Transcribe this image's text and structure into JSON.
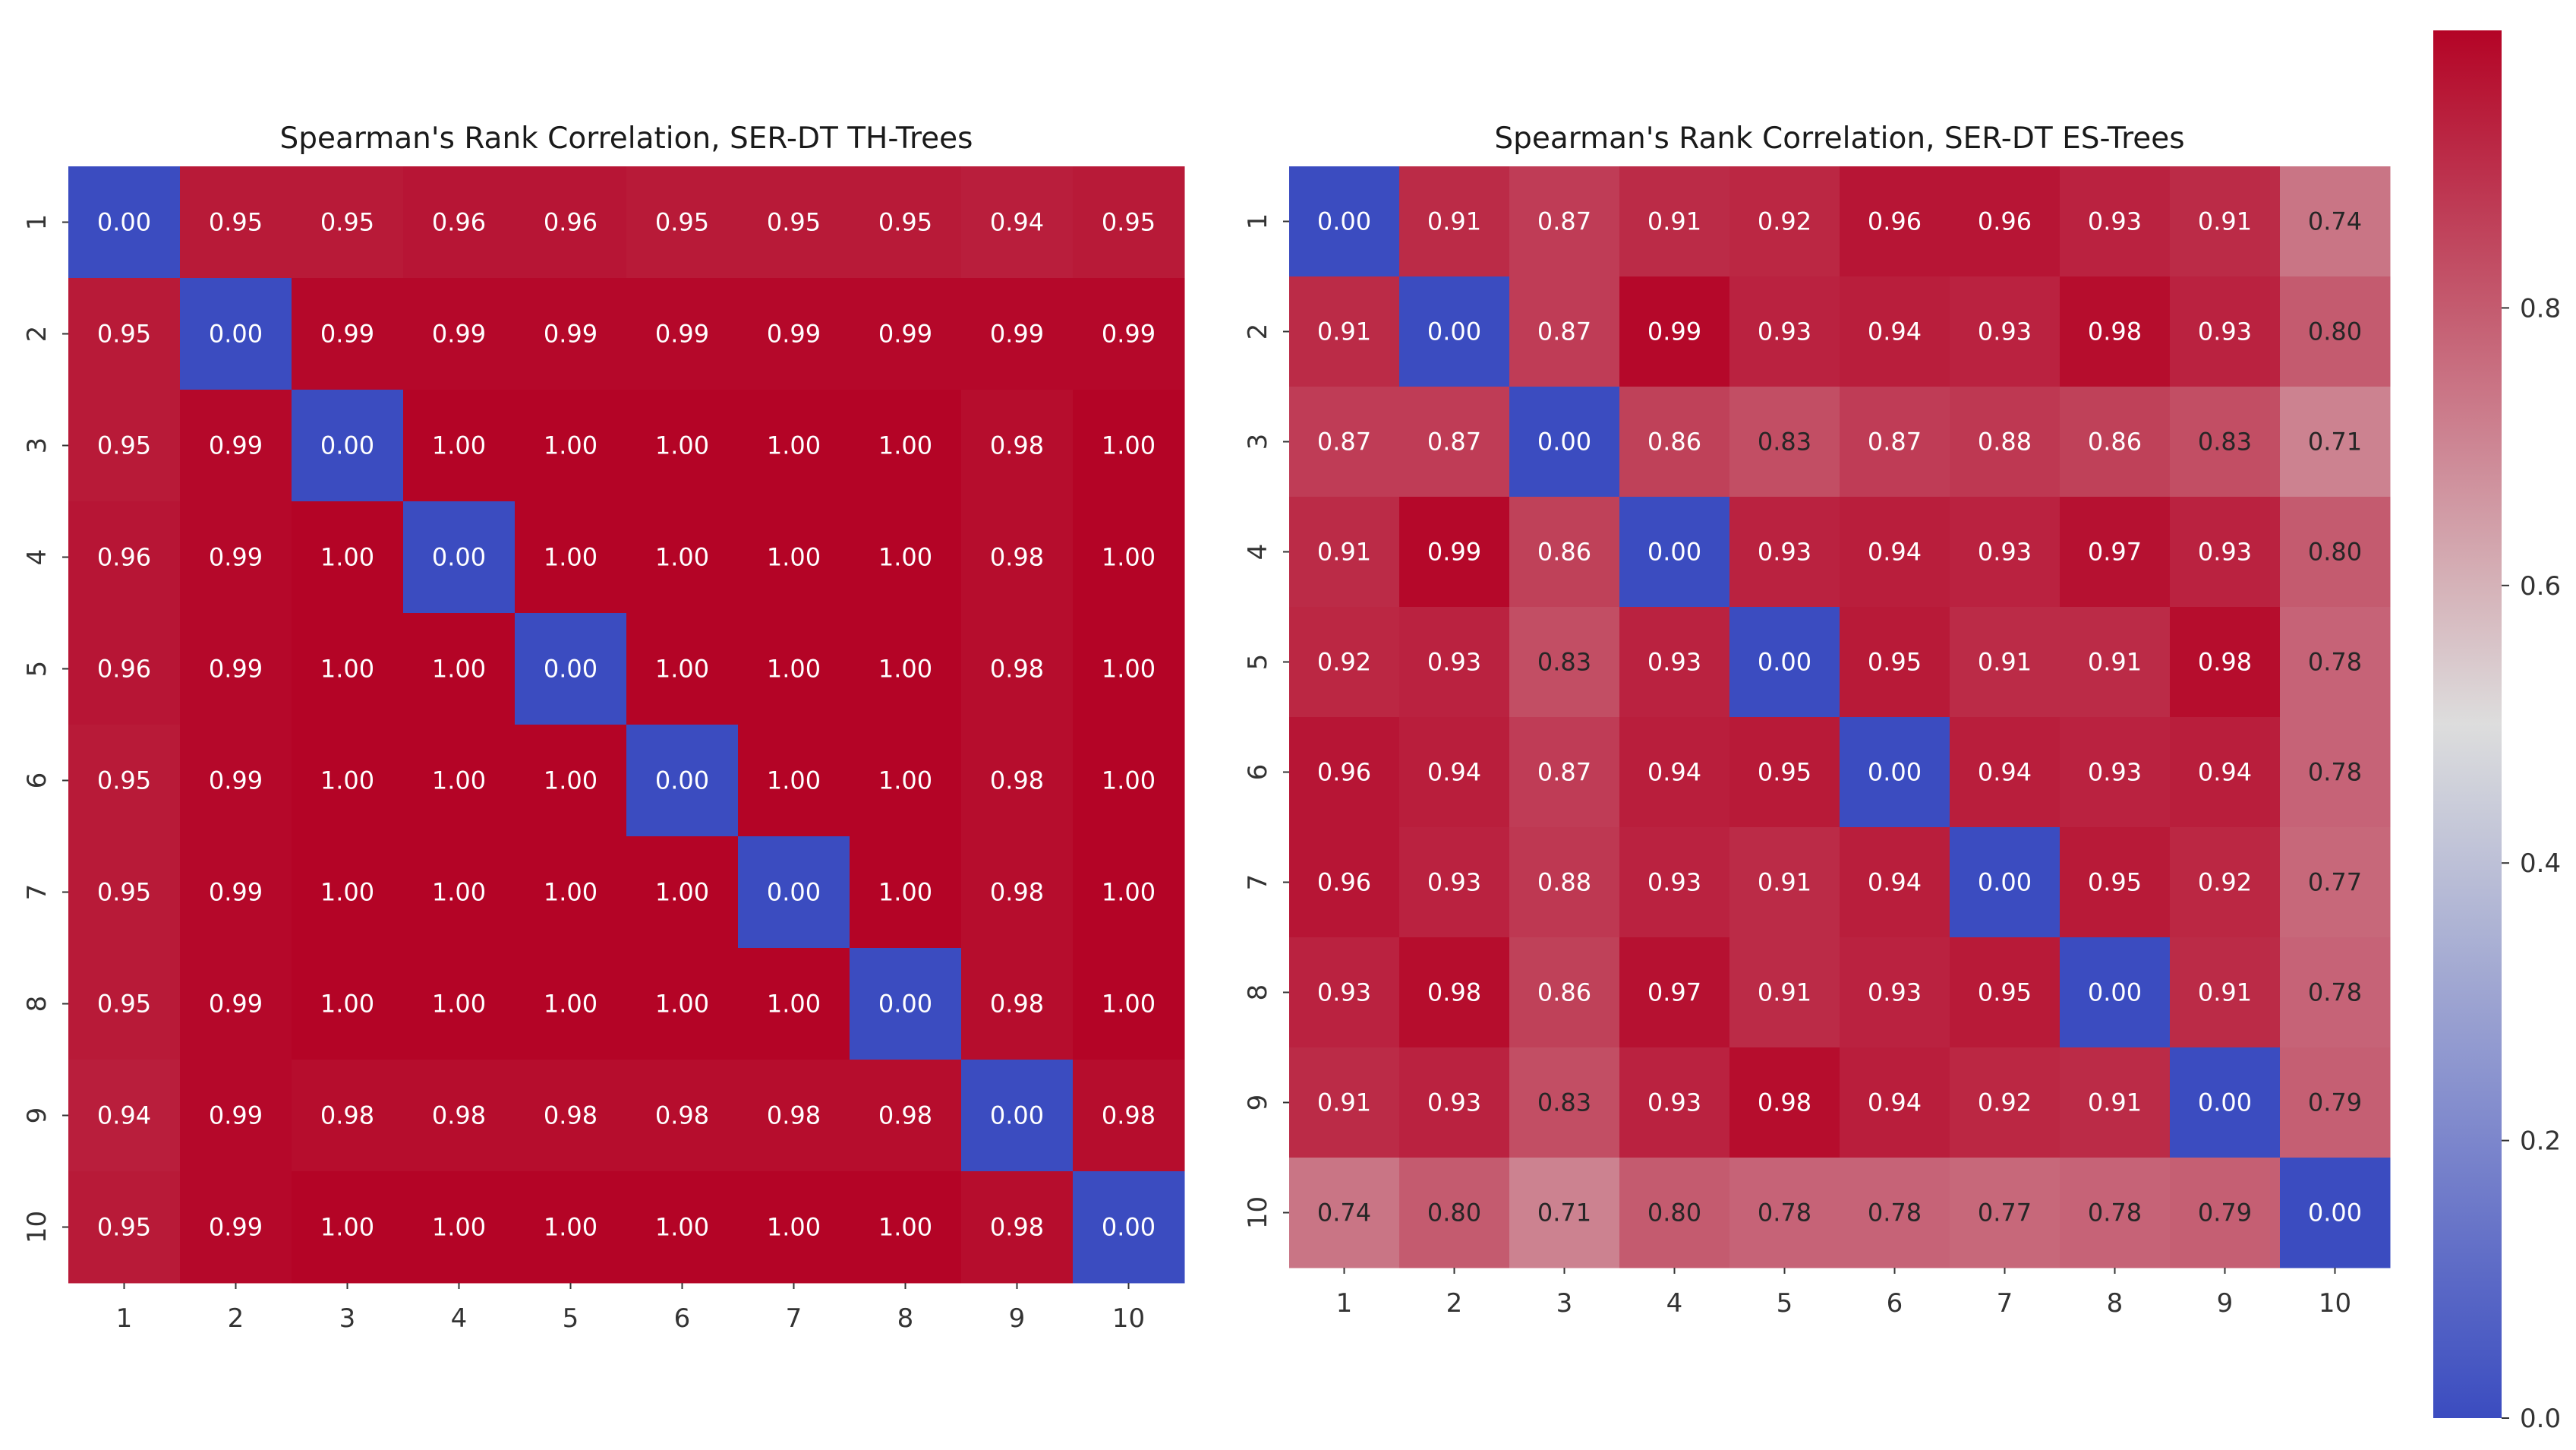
{
  "colors": {
    "cmap_low": "#3b4cc0",
    "cmap_mid": "#dddddd",
    "cmap_high": "#b40426",
    "tick": "#333333",
    "text_dark": "#262626",
    "text_light": "#ffffff"
  },
  "chart_data": [
    {
      "type": "heatmap",
      "title": "Spearman's Rank Correlation, SER-DT TH-Trees",
      "xlabels": [
        "1",
        "2",
        "3",
        "4",
        "5",
        "6",
        "7",
        "8",
        "9",
        "10"
      ],
      "ylabels": [
        "1",
        "2",
        "3",
        "4",
        "5",
        "6",
        "7",
        "8",
        "9",
        "10"
      ],
      "values": [
        [
          0.0,
          0.95,
          0.95,
          0.96,
          0.96,
          0.95,
          0.95,
          0.95,
          0.94,
          0.95
        ],
        [
          0.95,
          0.0,
          0.99,
          0.99,
          0.99,
          0.99,
          0.99,
          0.99,
          0.99,
          0.99
        ],
        [
          0.95,
          0.99,
          0.0,
          1.0,
          1.0,
          1.0,
          1.0,
          1.0,
          0.98,
          1.0
        ],
        [
          0.96,
          0.99,
          1.0,
          0.0,
          1.0,
          1.0,
          1.0,
          1.0,
          0.98,
          1.0
        ],
        [
          0.96,
          0.99,
          1.0,
          1.0,
          0.0,
          1.0,
          1.0,
          1.0,
          0.98,
          1.0
        ],
        [
          0.95,
          0.99,
          1.0,
          1.0,
          1.0,
          0.0,
          1.0,
          1.0,
          0.98,
          1.0
        ],
        [
          0.95,
          0.99,
          1.0,
          1.0,
          1.0,
          1.0,
          0.0,
          1.0,
          0.98,
          1.0
        ],
        [
          0.95,
          0.99,
          1.0,
          1.0,
          1.0,
          1.0,
          1.0,
          0.0,
          0.98,
          1.0
        ],
        [
          0.94,
          0.99,
          0.98,
          0.98,
          0.98,
          0.98,
          0.98,
          0.98,
          0.0,
          0.98
        ],
        [
          0.95,
          0.99,
          1.0,
          1.0,
          1.0,
          1.0,
          1.0,
          1.0,
          0.98,
          0.0
        ]
      ],
      "labels": [
        [
          "0.00",
          "0.95",
          "0.95",
          "0.96",
          "0.96",
          "0.95",
          "0.95",
          "0.95",
          "0.94",
          "0.95"
        ],
        [
          "0.95",
          "0.00",
          "0.99",
          "0.99",
          "0.99",
          "0.99",
          "0.99",
          "0.99",
          "0.99",
          "0.99"
        ],
        [
          "0.95",
          "0.99",
          "0.00",
          "1.00",
          "1.00",
          "1.00",
          "1.00",
          "1.00",
          "0.98",
          "1.00"
        ],
        [
          "0.96",
          "0.99",
          "1.00",
          "0.00",
          "1.00",
          "1.00",
          "1.00",
          "1.00",
          "0.98",
          "1.00"
        ],
        [
          "0.96",
          "0.99",
          "1.00",
          "1.00",
          "0.00",
          "1.00",
          "1.00",
          "1.00",
          "0.98",
          "1.00"
        ],
        [
          "0.95",
          "0.99",
          "1.00",
          "1.00",
          "1.00",
          "0.00",
          "1.00",
          "1.00",
          "0.98",
          "1.00"
        ],
        [
          "0.95",
          "0.99",
          "1.00",
          "1.00",
          "1.00",
          "1.00",
          "0.00",
          "1.00",
          "0.98",
          "1.00"
        ],
        [
          "0.95",
          "0.99",
          "1.00",
          "1.00",
          "1.00",
          "1.00",
          "1.00",
          "0.00",
          "0.98",
          "1.00"
        ],
        [
          "0.94",
          "0.99",
          "0.98",
          "0.98",
          "0.98",
          "0.98",
          "0.98",
          "0.98",
          "0.00",
          "0.98"
        ],
        [
          "0.95",
          "0.99",
          "1.00",
          "1.00",
          "1.00",
          "1.00",
          "1.00",
          "1.00",
          "0.98",
          "0.00"
        ]
      ]
    },
    {
      "type": "heatmap",
      "title": "Spearman's Rank Correlation, SER-DT ES-Trees",
      "xlabels": [
        "1",
        "2",
        "3",
        "4",
        "5",
        "6",
        "7",
        "8",
        "9",
        "10"
      ],
      "ylabels": [
        "1",
        "2",
        "3",
        "4",
        "5",
        "6",
        "7",
        "8",
        "9",
        "10"
      ],
      "values": [
        [
          0.0,
          0.91,
          0.87,
          0.91,
          0.92,
          0.96,
          0.96,
          0.93,
          0.91,
          0.74
        ],
        [
          0.91,
          0.0,
          0.87,
          0.99,
          0.93,
          0.94,
          0.93,
          0.98,
          0.93,
          0.8
        ],
        [
          0.87,
          0.87,
          0.0,
          0.86,
          0.83,
          0.87,
          0.88,
          0.86,
          0.83,
          0.71
        ],
        [
          0.91,
          0.99,
          0.86,
          0.0,
          0.93,
          0.94,
          0.93,
          0.97,
          0.93,
          0.8
        ],
        [
          0.92,
          0.93,
          0.83,
          0.93,
          0.0,
          0.95,
          0.91,
          0.91,
          0.98,
          0.78
        ],
        [
          0.96,
          0.94,
          0.87,
          0.94,
          0.95,
          0.0,
          0.94,
          0.93,
          0.94,
          0.78
        ],
        [
          0.96,
          0.93,
          0.88,
          0.93,
          0.91,
          0.94,
          0.0,
          0.95,
          0.92,
          0.77
        ],
        [
          0.93,
          0.98,
          0.86,
          0.97,
          0.91,
          0.93,
          0.95,
          0.0,
          0.91,
          0.78
        ],
        [
          0.91,
          0.93,
          0.83,
          0.93,
          0.98,
          0.94,
          0.92,
          0.91,
          0.0,
          0.79
        ],
        [
          0.74,
          0.8,
          0.71,
          0.8,
          0.78,
          0.78,
          0.77,
          0.78,
          0.79,
          0.0
        ]
      ],
      "labels": [
        [
          "0.00",
          "0.91",
          "0.87",
          "0.91",
          "0.92",
          "0.96",
          "0.96",
          "0.93",
          "0.91",
          "0.74"
        ],
        [
          "0.91",
          "0.00",
          "0.87",
          "0.99",
          "0.93",
          "0.94",
          "0.93",
          "0.98",
          "0.93",
          "0.80"
        ],
        [
          "0.87",
          "0.87",
          "0.00",
          "0.86",
          "0.83",
          "0.87",
          "0.88",
          "0.86",
          "0.83",
          "0.71"
        ],
        [
          "0.91",
          "0.99",
          "0.86",
          "0.00",
          "0.93",
          "0.94",
          "0.93",
          "0.97",
          "0.93",
          "0.80"
        ],
        [
          "0.92",
          "0.93",
          "0.83",
          "0.93",
          "0.00",
          "0.95",
          "0.91",
          "0.91",
          "0.98",
          "0.78"
        ],
        [
          "0.96",
          "0.94",
          "0.87",
          "0.94",
          "0.95",
          "0.00",
          "0.94",
          "0.93",
          "0.94",
          "0.78"
        ],
        [
          "0.96",
          "0.93",
          "0.88",
          "0.93",
          "0.91",
          "0.94",
          "0.00",
          "0.95",
          "0.92",
          "0.77"
        ],
        [
          "0.93",
          "0.98",
          "0.86",
          "0.97",
          "0.91",
          "0.93",
          "0.95",
          "0.00",
          "0.91",
          "0.78"
        ],
        [
          "0.91",
          "0.93",
          "0.83",
          "0.93",
          "0.98",
          "0.94",
          "0.92",
          "0.91",
          "0.00",
          "0.79"
        ],
        [
          "0.74",
          "0.80",
          "0.71",
          "0.80",
          "0.78",
          "0.78",
          "0.77",
          "0.78",
          "0.79",
          "0.00"
        ]
      ]
    }
  ],
  "colorbar": {
    "colormap": "coolwarm",
    "range": [
      0.0,
      1.0
    ],
    "ticks": [
      {
        "value": 0.0,
        "label": "0.0"
      },
      {
        "value": 0.2,
        "label": "0.2"
      },
      {
        "value": 0.4,
        "label": "0.4"
      },
      {
        "value": 0.6,
        "label": "0.6"
      },
      {
        "value": 0.8,
        "label": "0.8"
      }
    ]
  }
}
